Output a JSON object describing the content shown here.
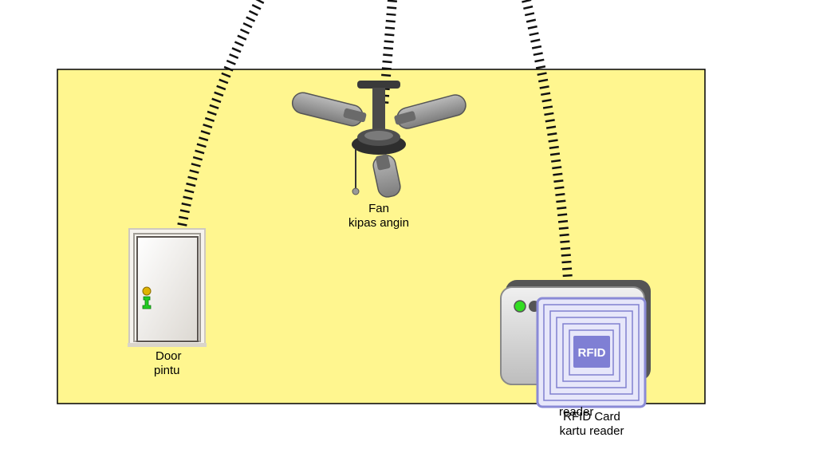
{
  "devices": {
    "fan": {
      "name": "Fan",
      "local": "kipas angin"
    },
    "door": {
      "name": "Door",
      "local": "pintu"
    },
    "rfid": {
      "name_top": "reader",
      "name": "RFID Card",
      "local": "kartu reader",
      "badge": "RFID"
    }
  },
  "icons": {
    "fan": "ceiling-fan-icon",
    "door": "door-icon",
    "rfid_reader": "card-reader-icon",
    "rfid_card": "rfid-card-icon"
  },
  "colors": {
    "room_fill": "#fff68f",
    "room_border": "#000000",
    "cable": "#111111",
    "led_on": "#33dd22",
    "rfid_card": "#7f7fd4",
    "door_knob": "#e0b400",
    "door_lock": "#22cc22"
  }
}
